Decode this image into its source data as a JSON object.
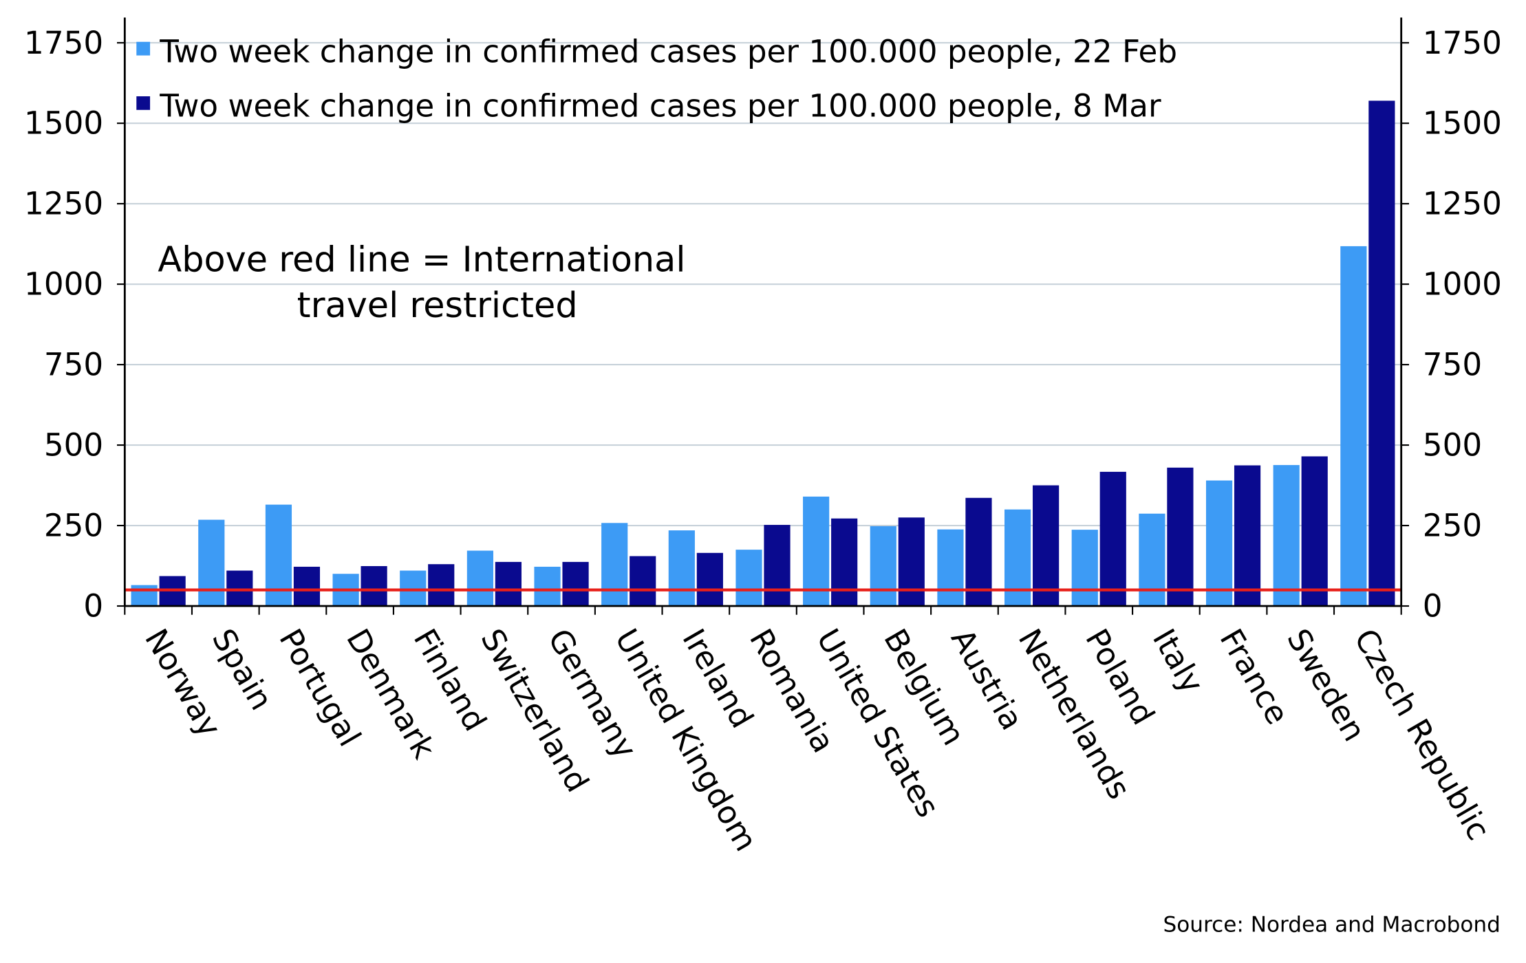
{
  "chart_data": {
    "type": "bar",
    "categories": [
      "Norway",
      "Spain",
      "Portugal",
      "Denmark",
      "Finland",
      "Switzerland",
      "Germany",
      "United Kingdom",
      "Ireland",
      "Romania",
      "United States",
      "Belgium",
      "Austria",
      "Netherlands",
      "Poland",
      "Italy",
      "France",
      "Sweden",
      "Czech Republic"
    ],
    "series": [
      {
        "name": "Two week change in confirmed cases per 100.000 people, 22 Feb",
        "color": "#3d9bf5",
        "values": [
          65,
          268,
          315,
          100,
          110,
          172,
          122,
          258,
          235,
          175,
          340,
          248,
          238,
          300,
          237,
          287,
          390,
          438,
          1118
        ]
      },
      {
        "name": "Two week change in confirmed cases per 100.000 people, 8 Mar",
        "color": "#0a0a8f",
        "values": [
          93,
          110,
          122,
          124,
          130,
          137,
          137,
          155,
          165,
          252,
          272,
          275,
          336,
          375,
          417,
          430,
          437,
          465,
          1570
        ]
      }
    ],
    "ylim": [
      0,
      1750
    ],
    "yticks": [
      0,
      250,
      500,
      750,
      1000,
      1250,
      1500,
      1750
    ],
    "y2lim": [
      0,
      1750
    ],
    "y2ticks": [
      0,
      250,
      500,
      750,
      1000,
      1250,
      1500,
      1750
    ],
    "grid": true,
    "threshold": {
      "value": 50,
      "color": "#e8201a"
    },
    "annotation": [
      "Above red line = International",
      "travel restricted"
    ],
    "source": "Source: Nordea and Macrobond"
  }
}
